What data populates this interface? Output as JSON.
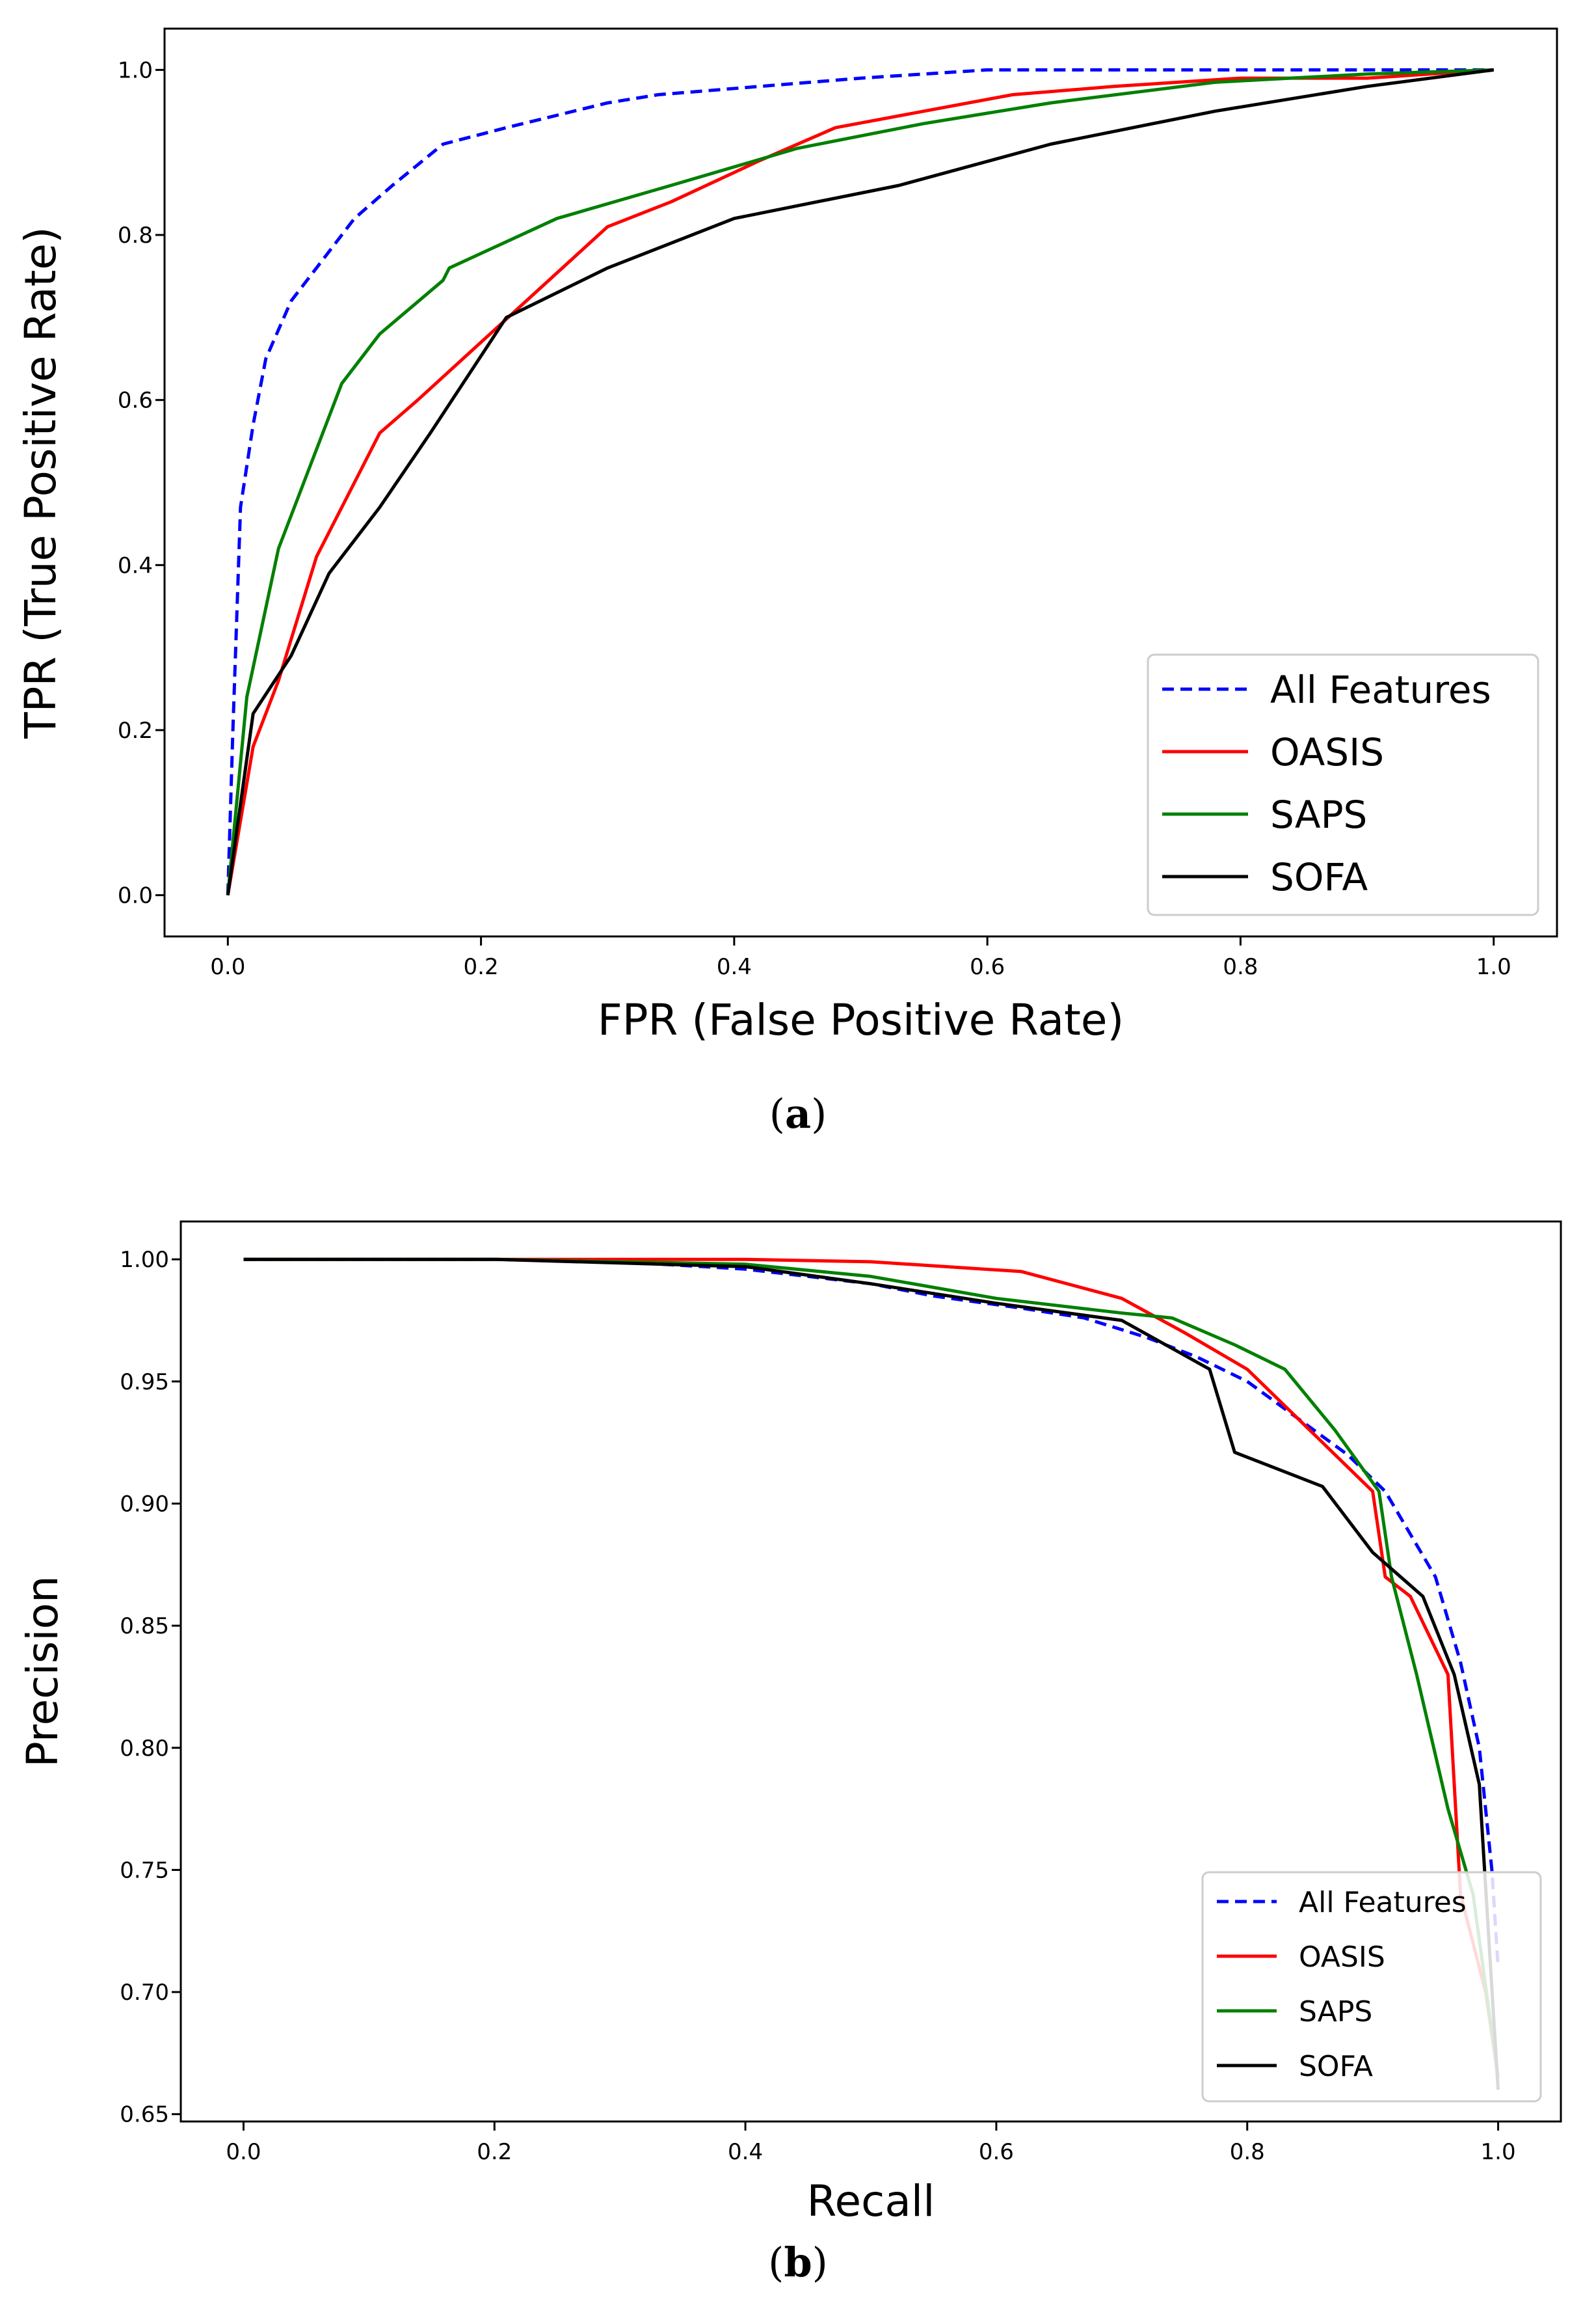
{
  "chart_data": [
    {
      "type": "line",
      "title": "",
      "xlabel": "FPR (False Positive Rate)",
      "ylabel": "TPR (True Positive Rate)",
      "caption": {
        "open": "(",
        "letter": "a",
        "close": ")"
      },
      "xlim": [
        -0.05,
        1.05
      ],
      "ylim": [
        -0.05,
        1.05
      ],
      "xticks": [
        0.0,
        0.2,
        0.4,
        0.6,
        0.8,
        1.0
      ],
      "xtick_labels": [
        "0.0",
        "0.2",
        "0.4",
        "0.6",
        "0.8",
        "1.0"
      ],
      "yticks": [
        0.0,
        0.2,
        0.4,
        0.6,
        0.8,
        1.0
      ],
      "ytick_labels": [
        "0.0",
        "0.2",
        "0.4",
        "0.6",
        "0.8",
        "1.0"
      ],
      "legend": "lower-right",
      "grid": false,
      "series": [
        {
          "name": "All Features",
          "color": "#0000ff",
          "style": "dashed",
          "x": [
            0.0,
            0.004,
            0.01,
            0.02,
            0.03,
            0.05,
            0.07,
            0.1,
            0.13,
            0.17,
            0.22,
            0.3,
            0.34,
            0.42,
            0.5,
            0.6,
            0.7,
            0.8,
            1.0
          ],
          "y": [
            0.0,
            0.2,
            0.47,
            0.57,
            0.65,
            0.72,
            0.76,
            0.82,
            0.86,
            0.91,
            0.93,
            0.96,
            0.97,
            0.98,
            0.99,
            1.0,
            1.0,
            1.0,
            1.0
          ]
        },
        {
          "name": "OASIS",
          "color": "#ff0000",
          "style": "solid",
          "x": [
            0.0,
            0.02,
            0.04,
            0.07,
            0.1,
            0.12,
            0.15,
            0.2,
            0.25,
            0.3,
            0.35,
            0.42,
            0.48,
            0.55,
            0.62,
            0.7,
            0.8,
            0.9,
            1.0
          ],
          "y": [
            0.0,
            0.18,
            0.26,
            0.41,
            0.5,
            0.56,
            0.6,
            0.67,
            0.74,
            0.81,
            0.84,
            0.89,
            0.93,
            0.95,
            0.97,
            0.98,
            0.99,
            0.99,
            1.0
          ]
        },
        {
          "name": "SAPS",
          "color": "#008000",
          "style": "solid",
          "x": [
            0.0,
            0.015,
            0.04,
            0.06,
            0.09,
            0.12,
            0.17,
            0.175,
            0.26,
            0.35,
            0.45,
            0.55,
            0.65,
            0.78,
            0.9,
            1.0
          ],
          "y": [
            0.0,
            0.24,
            0.42,
            0.5,
            0.62,
            0.68,
            0.745,
            0.76,
            0.82,
            0.86,
            0.905,
            0.935,
            0.96,
            0.985,
            0.995,
            1.0
          ]
        },
        {
          "name": "SOFA",
          "color": "#000000",
          "style": "solid",
          "x": [
            0.0,
            0.02,
            0.05,
            0.08,
            0.12,
            0.16,
            0.22,
            0.3,
            0.4,
            0.53,
            0.65,
            0.78,
            0.9,
            1.0
          ],
          "y": [
            0.0,
            0.22,
            0.29,
            0.39,
            0.47,
            0.56,
            0.7,
            0.76,
            0.82,
            0.86,
            0.91,
            0.95,
            0.98,
            1.0
          ]
        }
      ]
    },
    {
      "type": "line",
      "title": "",
      "xlabel": "Recall",
      "ylabel": "Precision",
      "caption": {
        "open": "(",
        "letter": "b",
        "close": ")"
      },
      "xlim": [
        -0.05,
        1.05
      ],
      "ylim": [
        0.647,
        1.0155
      ],
      "xticks": [
        0.0,
        0.2,
        0.4,
        0.6,
        0.8,
        1.0
      ],
      "xtick_labels": [
        "0.0",
        "0.2",
        "0.4",
        "0.6",
        "0.8",
        "1.0"
      ],
      "yticks": [
        0.65,
        0.7,
        0.75,
        0.8,
        0.85,
        0.9,
        0.95,
        1.0
      ],
      "ytick_labels": [
        "0.65",
        "0.70",
        "0.75",
        "0.80",
        "0.85",
        "0.90",
        "0.95",
        "1.00"
      ],
      "legend": "lower-right",
      "grid": false,
      "series": [
        {
          "name": "All Features",
          "color": "#0000ff",
          "style": "dashed",
          "x": [
            0.0,
            0.2,
            0.3,
            0.4,
            0.5,
            0.55,
            0.62,
            0.67,
            0.72,
            0.76,
            0.8,
            0.84,
            0.88,
            0.91,
            0.95,
            0.97,
            0.985,
            0.995,
            1.0
          ],
          "y": [
            1.0,
            1.0,
            0.999,
            0.996,
            0.99,
            0.985,
            0.98,
            0.976,
            0.968,
            0.96,
            0.95,
            0.935,
            0.92,
            0.905,
            0.87,
            0.835,
            0.8,
            0.75,
            0.71
          ]
        },
        {
          "name": "OASIS",
          "color": "#ff0000",
          "style": "solid",
          "x": [
            0.0,
            0.2,
            0.4,
            0.5,
            0.62,
            0.7,
            0.75,
            0.8,
            0.85,
            0.9,
            0.91,
            0.93,
            0.96,
            0.97,
            0.99,
            1.0
          ],
          "y": [
            1.0,
            1.0,
            1.0,
            0.999,
            0.995,
            0.984,
            0.97,
            0.955,
            0.93,
            0.905,
            0.87,
            0.862,
            0.83,
            0.74,
            0.7,
            0.665
          ]
        },
        {
          "name": "SAPS",
          "color": "#008000",
          "style": "solid",
          "x": [
            0.0,
            0.2,
            0.4,
            0.5,
            0.6,
            0.7,
            0.74,
            0.79,
            0.83,
            0.87,
            0.905,
            0.915,
            0.935,
            0.96,
            0.98,
            1.0
          ],
          "y": [
            1.0,
            1.0,
            0.998,
            0.993,
            0.984,
            0.978,
            0.976,
            0.965,
            0.955,
            0.93,
            0.905,
            0.87,
            0.83,
            0.775,
            0.74,
            0.665
          ]
        },
        {
          "name": "SOFA",
          "color": "#000000",
          "style": "solid",
          "x": [
            0.0,
            0.2,
            0.4,
            0.5,
            0.6,
            0.7,
            0.77,
            0.79,
            0.82,
            0.86,
            0.9,
            0.94,
            0.965,
            0.985,
            1.0
          ],
          "y": [
            1.0,
            1.0,
            0.997,
            0.99,
            0.982,
            0.975,
            0.955,
            0.921,
            0.915,
            0.907,
            0.88,
            0.862,
            0.83,
            0.785,
            0.66
          ]
        }
      ]
    }
  ]
}
